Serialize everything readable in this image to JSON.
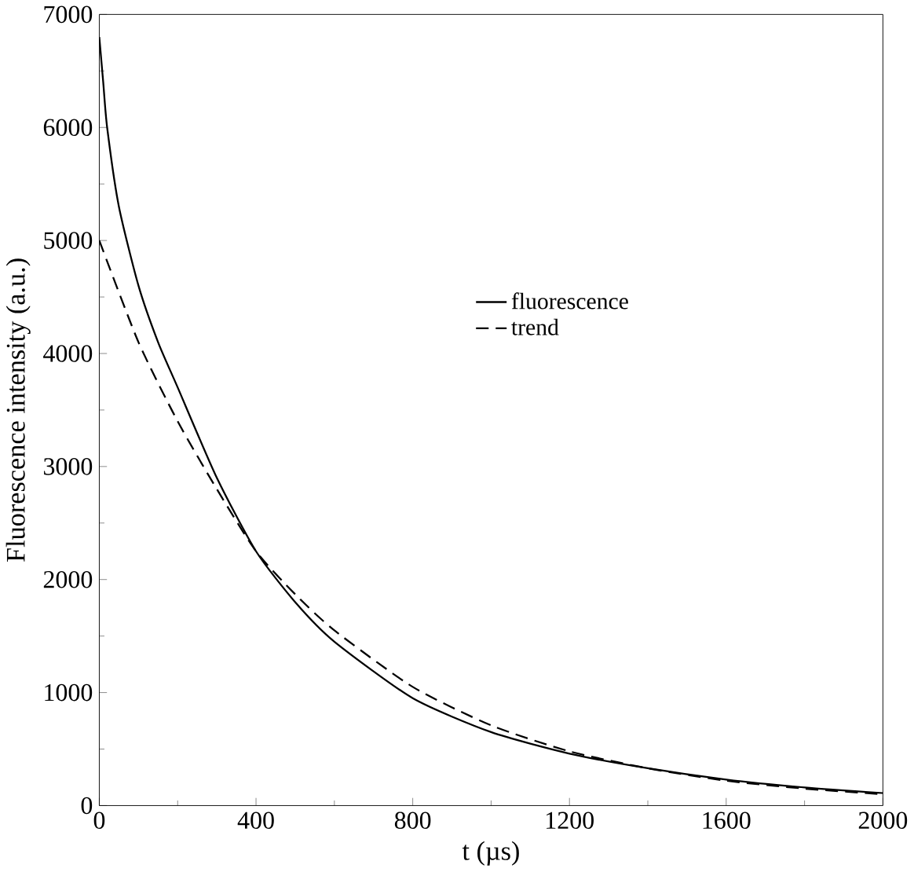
{
  "chart_data": {
    "type": "line",
    "xlabel": "t (µs)",
    "ylabel": "Fluorescence intensity (a.u.)",
    "xlim": [
      0,
      2000
    ],
    "xticks": [
      0,
      400,
      800,
      1200,
      1600,
      2000
    ],
    "ylim": [
      0,
      7000
    ],
    "yticks": [
      0,
      1000,
      2000,
      3000,
      4000,
      5000,
      6000,
      7000
    ],
    "legend": "center",
    "grid": false,
    "marker": "none",
    "series": [
      {
        "name": "fluorescence",
        "color": "#000000",
        "line_style": "solid",
        "x": [
          0,
          10,
          20,
          50,
          100,
          150,
          200,
          300,
          400,
          500,
          600,
          800,
          1000,
          1200,
          1400,
          1600,
          1800,
          2000
        ],
        "values": [
          6800,
          6400,
          6000,
          5300,
          4600,
          4100,
          3700,
          2900,
          2250,
          1800,
          1450,
          950,
          650,
          460,
          330,
          230,
          160,
          110
        ]
      },
      {
        "name": "trend",
        "color": "#000000",
        "line_style": "dashed",
        "x": [
          0,
          100,
          200,
          300,
          400,
          500,
          600,
          800,
          1000,
          1200,
          1400,
          1600,
          1800,
          2000
        ],
        "values": [
          5000,
          4100,
          3400,
          2800,
          2250,
          1870,
          1550,
          1050,
          710,
          480,
          330,
          220,
          150,
          100
        ]
      }
    ]
  }
}
